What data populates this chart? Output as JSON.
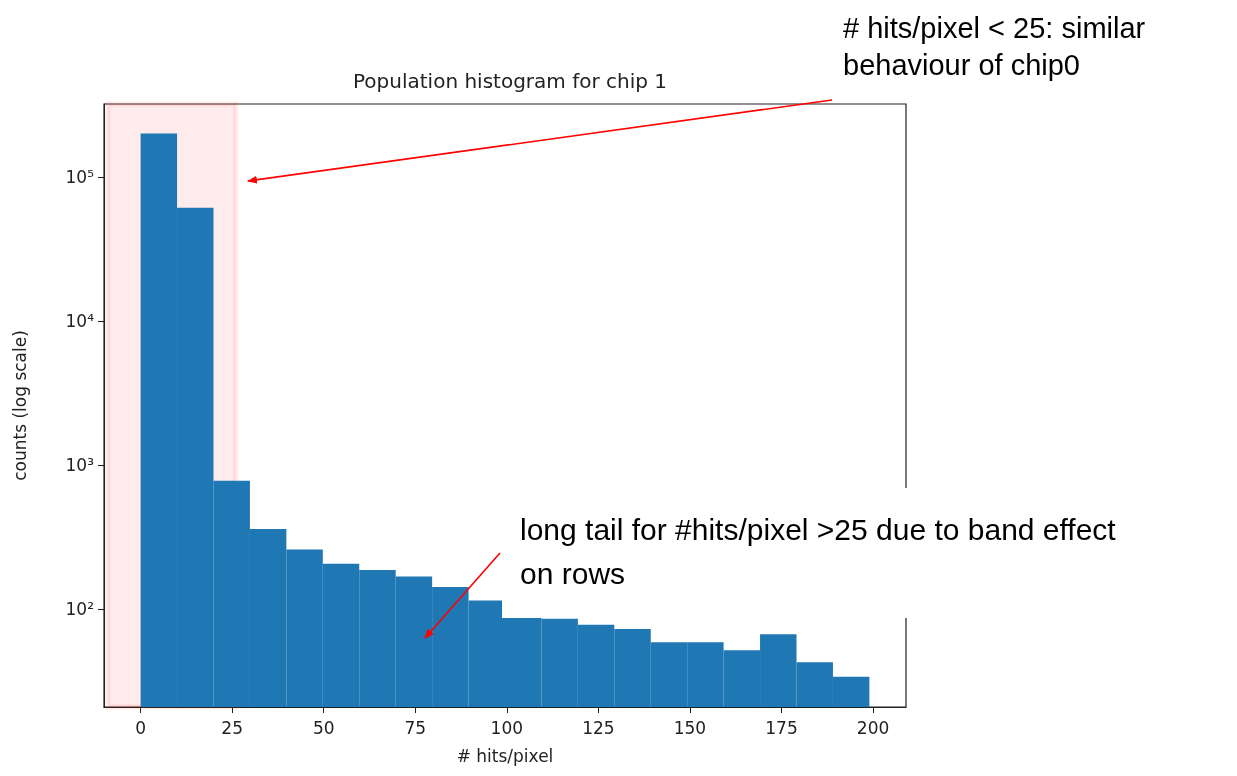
{
  "chart_data": {
    "type": "histogram",
    "title": "Population histogram for chip 1",
    "xlabel": "# hits/pixel",
    "ylabel": "counts (log scale)",
    "bins": [
      0,
      9.95,
      19.9,
      29.85,
      39.8,
      49.75,
      59.7,
      69.65,
      79.6,
      89.55,
      99.5,
      109.45,
      119.4,
      129.35,
      139.3,
      149.25,
      159.2,
      169.15,
      179.1,
      189.05,
      199
    ],
    "values": [
      200000,
      61000,
      780,
      360,
      260,
      207,
      187,
      169,
      143,
      115,
      87,
      86,
      78,
      73,
      59,
      59,
      52,
      67,
      43,
      34
    ],
    "color": "#1f77b4",
    "log": true,
    "grid": false,
    "bands": [
      {
        "axis": "x",
        "from": -9,
        "to": 26,
        "color": "#ff0000"
      }
    ],
    "xlim": [
      -10,
      209
    ],
    "xticks": [
      0,
      25,
      50,
      75,
      100,
      125,
      150,
      175,
      200
    ],
    "ylim": [
      21,
      320000
    ],
    "yticks": [
      {
        "value": 100,
        "label": "10²"
      },
      {
        "value": 1000,
        "label": "10³"
      },
      {
        "value": 10000,
        "label": "10⁴"
      },
      {
        "value": 100000,
        "label": "10⁵"
      }
    ],
    "annotations": [
      "# hits/pixel < 25: similar behaviour of chip0",
      "long tail for #hits/pixel >25 due to band effect on rows"
    ]
  }
}
